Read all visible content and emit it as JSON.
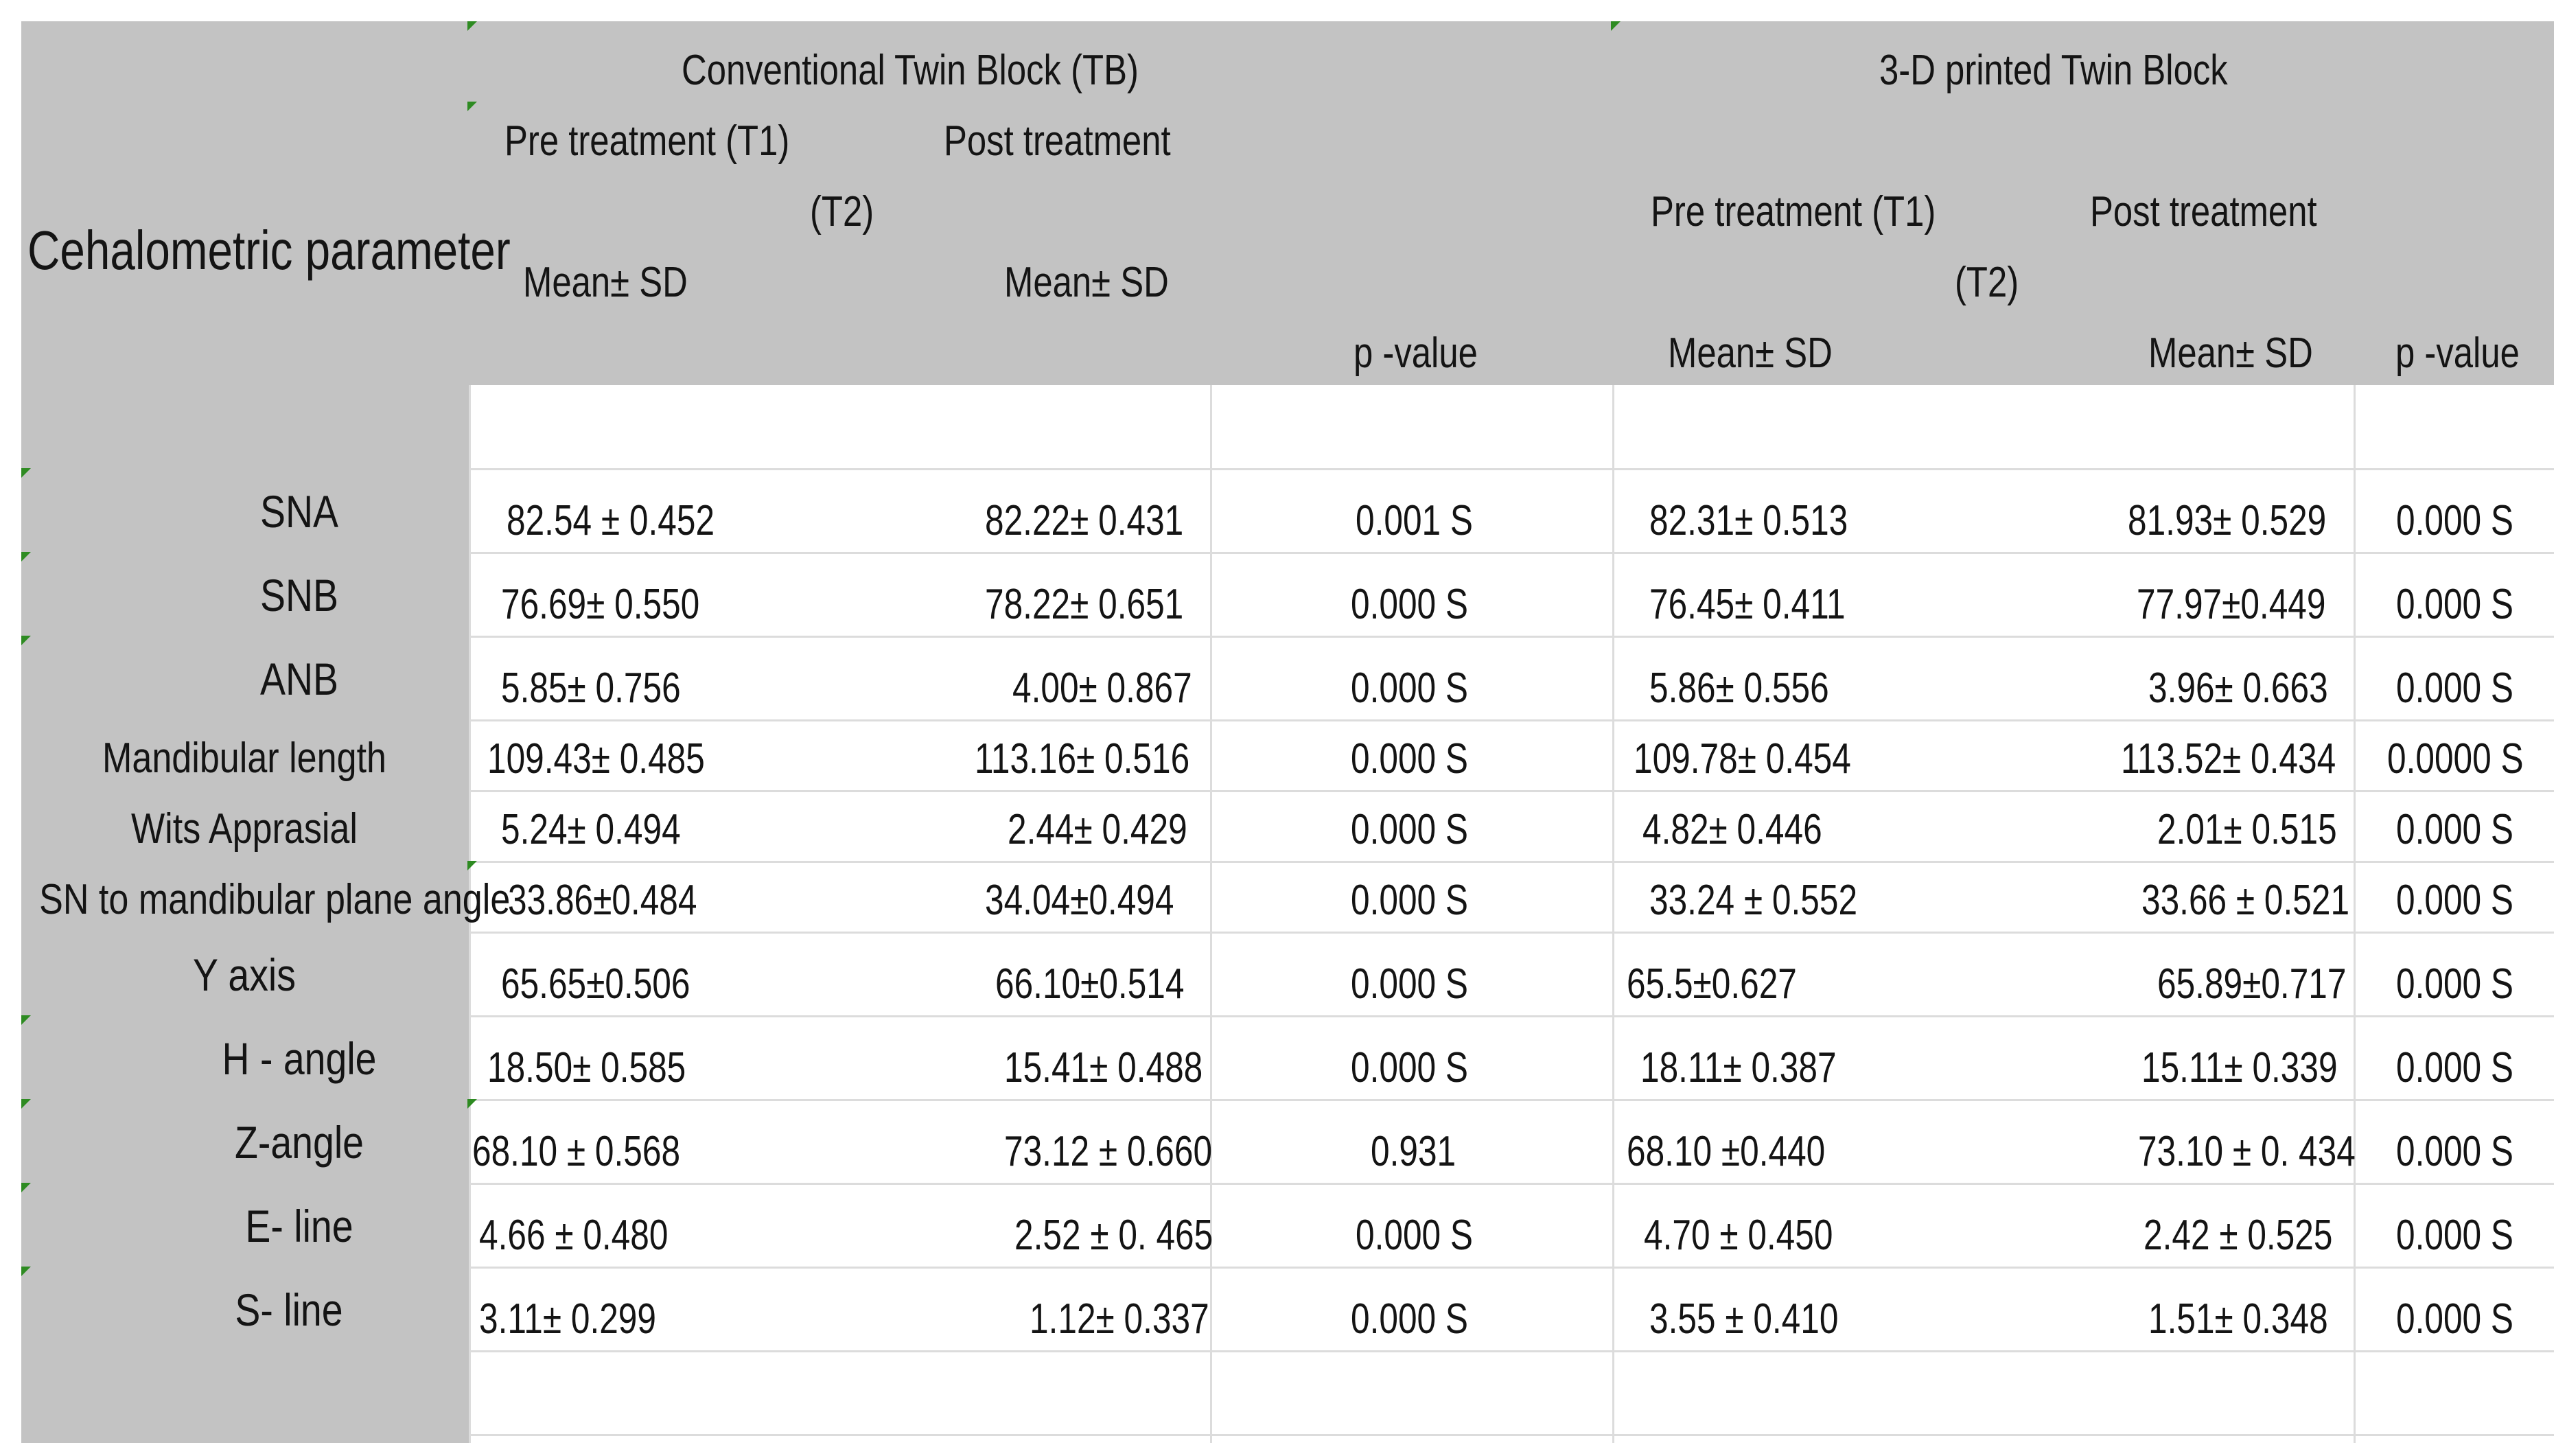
{
  "header": {
    "param_label": "Cehalometric parameter",
    "groups": [
      {
        "title": "Conventional  Twin Block (TB)",
        "pre_label": "Pre treatment (T1)",
        "post_label": "Post treatment",
        "t2_label": "(T2)",
        "pre_stat": "Mean± SD",
        "post_stat": "Mean± SD",
        "p_label": "p -value"
      },
      {
        "title": "3-D printed Twin Block",
        "pre_label": "Pre treatment (T1)",
        "post_label": "Post treatment",
        "t2_label": "(T2)",
        "pre_stat": "Mean± SD",
        "post_stat": "Mean± SD",
        "p_label": "p -value"
      }
    ]
  },
  "rows": [
    {
      "param": "SNA",
      "tb_pre": "82.54 ± 0.452",
      "tb_post": "82.22± 0.431",
      "tb_p": "0.001  S",
      "p3d_pre": "82.31± 0.513",
      "p3d_post": "81.93± 0.529",
      "p3d_p": "0.000  S"
    },
    {
      "param": "SNB",
      "tb_pre": "76.69± 0.550",
      "tb_post": "78.22± 0.651",
      "tb_p": "0.000   S",
      "p3d_pre": "76.45± 0.411",
      "p3d_post": "77.97±0.449",
      "p3d_p": "0.000   S"
    },
    {
      "param": "ANB",
      "tb_pre": "5.85± 0.756",
      "tb_post": "4.00± 0.867",
      "tb_p": "0.000   S",
      "p3d_pre": "5.86± 0.556",
      "p3d_post": "3.96± 0.663",
      "p3d_p": "0.000  S"
    },
    {
      "param": "Mandibular length",
      "tb_pre": "109.43± 0.485",
      "tb_post": "113.16± 0.516",
      "tb_p": "0.000   S",
      "p3d_pre": "109.78± 0.454",
      "p3d_post": "113.52± 0.434",
      "p3d_p": "0.0000  S"
    },
    {
      "param": "Wits Apprasial",
      "tb_pre": "5.24± 0.494",
      "tb_post": "2.44± 0.429",
      "tb_p": "0.000   S",
      "p3d_pre": "4.82± 0.446",
      "p3d_post": "2.01± 0.515",
      "p3d_p": "0.000  S"
    },
    {
      "param": "SN to mandibular plane angle",
      "tb_pre": "33.86±0.484",
      "tb_post": "34.04±0.494",
      "tb_p": "0.000   S",
      "p3d_pre": "33.24 ± 0.552",
      "p3d_post": "33.66 ± 0.521",
      "p3d_p": "0.000   S"
    },
    {
      "param": "Y axis",
      "tb_pre": "65.65±0.506",
      "tb_post": "66.10±0.514",
      "tb_p": "0.000   S",
      "p3d_pre": "65.5±0.627",
      "p3d_post": "65.89±0.717",
      "p3d_p": "0.000   S"
    },
    {
      "param": "H - angle",
      "tb_pre": "18.50± 0.585",
      "tb_post": "15.41± 0.488",
      "tb_p": "0.000   S",
      "p3d_pre": "18.11± 0.387",
      "p3d_post": "15.11± 0.339",
      "p3d_p": "0.000   S"
    },
    {
      "param": "Z-angle",
      "tb_pre": "68.10 ± 0.568",
      "tb_post": "73.12 ± 0.660",
      "tb_p": "0.931",
      "p3d_pre": "68.10 ±0.440",
      "p3d_post": "73.10 ± 0. 434",
      "p3d_p": "0.000   S"
    },
    {
      "param": "E- line",
      "tb_pre": "4.66 ± 0.480",
      "tb_post": "2.52 ± 0. 465",
      "tb_p": "0.000  S",
      "p3d_pre": "4.70 ± 0.450",
      "p3d_post": "2.42 ± 0.525",
      "p3d_p": "0.000   S"
    },
    {
      "param": "S- line",
      "tb_pre": "3.11± 0.299",
      "tb_post": "1.12± 0.337",
      "tb_p": "0.000   S",
      "p3d_pre": "3.55 ± 0.410",
      "p3d_post": "1.51± 0.348",
      "p3d_p": "0.000   S"
    }
  ]
}
